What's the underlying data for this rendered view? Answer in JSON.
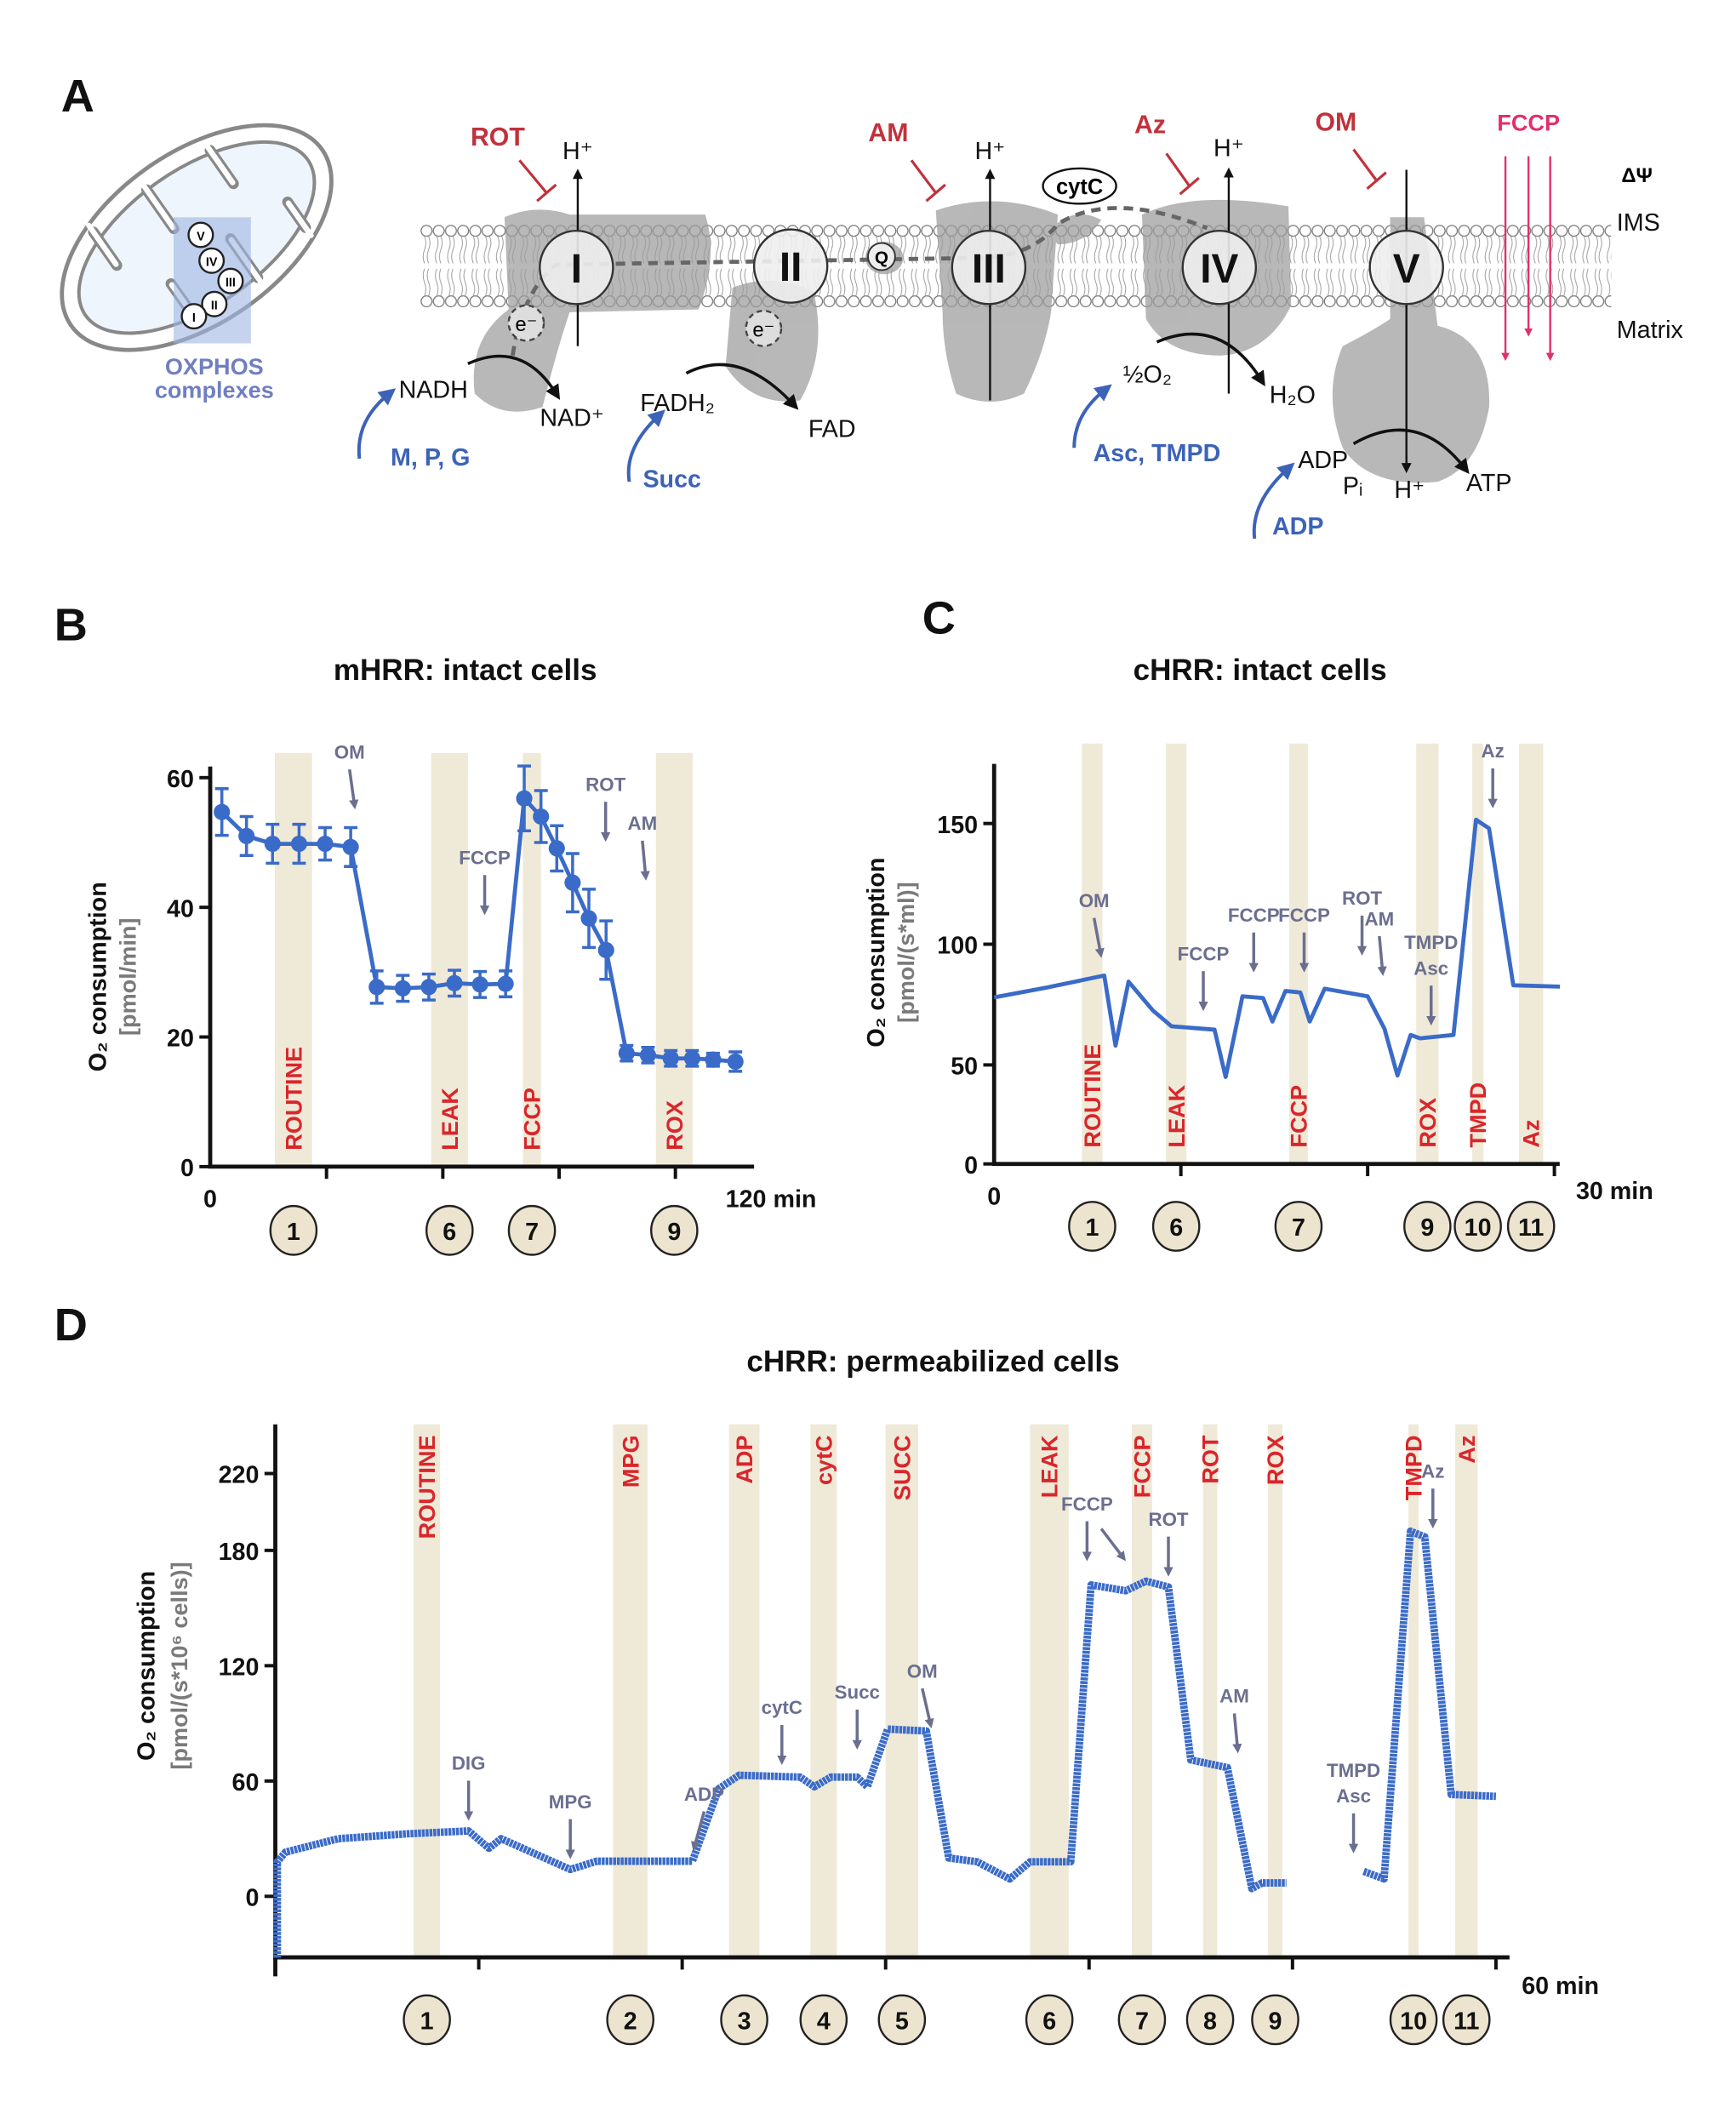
{
  "panel_labels": {
    "a": "A",
    "b": "B",
    "c": "C",
    "d": "D"
  },
  "diagram": {
    "mito_complexes": [
      "V",
      "IV",
      "III",
      "II",
      "I"
    ],
    "oxphos_label_1": "OXPHOS",
    "oxphos_label_2": "complexes",
    "complexes": [
      "I",
      "II",
      "III",
      "IV",
      "V"
    ],
    "q_label": "Q",
    "cytc_label": "cytC",
    "electron": "e⁻",
    "proton": "H⁺",
    "inhibitors": {
      "rot": "ROT",
      "am": "AM",
      "az": "Az",
      "om": "OM"
    },
    "uncoupler": "FCCP",
    "delta_psi": "ΔΨ",
    "ims": "IMS",
    "matrix": "Matrix",
    "metabolites": {
      "nadh": "NADH",
      "nad": "NAD⁺",
      "fadh2": "FADH₂",
      "fad": "FAD",
      "half_o2": "½O₂",
      "h2o": "H₂O",
      "adp": "ADP",
      "pi": "Pᵢ",
      "h": "H⁺",
      "atp": "ATP"
    },
    "substrates": {
      "mpg": "M, P, G",
      "succ": "Succ",
      "asc_tmpd": "Asc, TMPD",
      "adp": "ADP"
    }
  },
  "colors": {
    "trace": "#3a6bc8",
    "band": "#efe9d8",
    "band_label": "#d9262b",
    "annotation": "#6b6f8f",
    "inhibitor": "#c0323c",
    "fccp": "#e0306a"
  },
  "chart_data": [
    {
      "id": "B",
      "type": "line",
      "title": "mHRR: intact cells",
      "ylabel": "O₂ consumption",
      "yunit": "[pmol/min]",
      "x_start_label": "0",
      "x_end_label": "120 min",
      "xlim": [
        0,
        117
      ],
      "ylim": [
        0,
        60
      ],
      "yticks": [
        0,
        20,
        40,
        60
      ],
      "xticks": [
        25,
        50,
        75,
        100
      ],
      "series": [
        {
          "name": "O2 consumption",
          "x": [
            2.5,
            7.8,
            13.4,
            19.1,
            24.7,
            30.2,
            35.8,
            41.4,
            47,
            52.5,
            58,
            63.5,
            67.5,
            71.1,
            74.5,
            77.9,
            81.4,
            85.1,
            89.5,
            94.1,
            99,
            103.6,
            108.1,
            112.9
          ],
          "y": [
            54.7,
            51.0,
            49.8,
            49.8,
            49.8,
            49.3,
            27.7,
            27.5,
            27.7,
            28.3,
            28.1,
            28.2,
            56.8,
            54.0,
            49.1,
            43.8,
            38.3,
            33.4,
            17.5,
            17.2,
            16.7,
            16.7,
            16.5,
            16.2
          ],
          "err": [
            3.6,
            3.0,
            3.0,
            3.0,
            2.5,
            3.0,
            2.5,
            2.0,
            2.0,
            2.0,
            2.0,
            2.0,
            5.0,
            4.0,
            3.5,
            4.5,
            4.5,
            4.5,
            1.2,
            1.2,
            1.2,
            1.2,
            1.0,
            1.5
          ]
        }
      ],
      "bands": [
        {
          "label": "ROUTINE",
          "marker": "1",
          "x": [
            13.9,
            21.9
          ]
        },
        {
          "label": "LEAK",
          "marker": "6",
          "x": [
            47.5,
            55.4
          ]
        },
        {
          "label": "FCCP",
          "marker": "7",
          "x": [
            67.2,
            71.1
          ]
        },
        {
          "label": "ROX",
          "marker": "9",
          "x": [
            95.8,
            103.7
          ]
        }
      ],
      "annotations": [
        {
          "text": [
            "OM"
          ],
          "x": 31,
          "y": 55,
          "slant": 3
        },
        {
          "text": [
            "FCCP"
          ],
          "x": 59,
          "y": 38.7,
          "slant": 0
        },
        {
          "text": [
            "ROT"
          ],
          "x": 85,
          "y": 50,
          "slant": 0
        },
        {
          "text": [
            "AM"
          ],
          "x": 93.6,
          "y": 44,
          "slant": 2
        }
      ]
    },
    {
      "id": "C",
      "type": "line",
      "title": "cHRR: intact cells",
      "ylabel": "O₂ consumption",
      "yunit": "[pmol/(s*ml)]",
      "x_start_label": "0",
      "x_end_label": "30 min",
      "xlim": [
        0,
        30.3
      ],
      "ylim": [
        9,
        170
      ],
      "yticks": [
        0,
        50,
        100,
        150
      ],
      "xticks": [
        10,
        20,
        30
      ],
      "series": [
        {
          "name": "O2 consumption",
          "x": [
            0,
            2.8,
            5.9,
            6.5,
            7.2,
            8.5,
            9.5,
            11.8,
            12.4,
            13.3,
            14.4,
            14.9,
            15.6,
            16.4,
            16.9,
            17.7,
            20.0,
            20.9,
            21.6,
            22.3,
            22.8,
            24.6,
            25.8,
            26.5,
            27.8,
            30.3
          ],
          "y": [
            78,
            82,
            87,
            58,
            84.5,
            72.6,
            66,
            64.6,
            45,
            78.4,
            77.7,
            68,
            80.6,
            80,
            68,
            81.6,
            78.4,
            65,
            45.6,
            62.4,
            61,
            62.4,
            151.6,
            148,
            83,
            82.4
          ]
        }
      ],
      "bands": [
        {
          "label": "ROUTINE",
          "marker": "1",
          "x": [
            4.7,
            5.8
          ]
        },
        {
          "label": "LEAK",
          "marker": "6",
          "x": [
            9.2,
            10.3
          ]
        },
        {
          "label": "FCCP",
          "marker": "7",
          "x": [
            15.8,
            16.8
          ]
        },
        {
          "label": "ROX",
          "marker": "9",
          "x": [
            22.6,
            23.8
          ]
        },
        {
          "label": "TMPD",
          "marker": "10",
          "x": [
            25.6,
            26.2
          ]
        },
        {
          "label": "Az",
          "marker": "11",
          "x": [
            28.1,
            29.4
          ]
        }
      ],
      "annotations": [
        {
          "text": [
            "OM"
          ],
          "x": 5.7,
          "y": 94,
          "slant": 4
        },
        {
          "text": [
            "FCCP"
          ],
          "x": 11.2,
          "y": 72,
          "slant": 0
        },
        {
          "text": [
            "FCCP"
          ],
          "x": 13.9,
          "y": 88,
          "slant": 0
        },
        {
          "text": [
            "FCCP"
          ],
          "x": 16.6,
          "y": 88,
          "slant": 0
        },
        {
          "text": [
            "ROT"
          ],
          "x": 19.7,
          "y": 95,
          "slant": 0
        },
        {
          "text": [
            "AM"
          ],
          "x": 20.8,
          "y": 86.5,
          "slant": 2
        },
        {
          "text": [
            "TMPD",
            "Asc"
          ],
          "x": 23.4,
          "y": 66,
          "slant": 0
        },
        {
          "text": [
            "Az"
          ],
          "x": 26.7,
          "y": 156,
          "slant": 0
        }
      ]
    },
    {
      "id": "D",
      "type": "line",
      "title": "cHRR: permeabilized cells",
      "ylabel": "O₂ consumption",
      "yunit": "[pmol/(s*10⁶ cells)]",
      "x_end_label": "60 min",
      "xlim": [
        0,
        60.7
      ],
      "ylim": [
        -32,
        230
      ],
      "yticks": [
        0,
        60,
        120,
        180,
        220
      ],
      "xticks": [
        10,
        20,
        30,
        40,
        50,
        60
      ],
      "series": [
        {
          "name": "O2 consumption (part 1)",
          "x": [
            0.1,
            0.1,
            0.5,
            3.1,
            6.5,
            9.5,
            10.5,
            11.1,
            14.5,
            15.8,
            20.5,
            21.8,
            22.8,
            25.8,
            26.5,
            27.3,
            28.6,
            29.1,
            30.1,
            32.0,
            33.1,
            34.5,
            36.1,
            37.1,
            39.1,
            40.1,
            41.8,
            42.8,
            43.9,
            45.0,
            46.8,
            48.0,
            48.5,
            49.7
          ],
          "y": [
            -32,
            18,
            23,
            30,
            32.5,
            34,
            25,
            30,
            14,
            18.3,
            18.3,
            56,
            63,
            62,
            57,
            62,
            62,
            57,
            87,
            86,
            20,
            18,
            9,
            18,
            18,
            162,
            159,
            164,
            161,
            71,
            67,
            4,
            7,
            7
          ]
        },
        {
          "name": "O2 consumption (part 2)",
          "x": [
            53.5,
            54.5,
            55.8,
            56.5,
            57.8,
            60.0
          ],
          "y": [
            13,
            9,
            190,
            187,
            53,
            52
          ]
        }
      ],
      "bands": [
        {
          "label": "ROUTINE",
          "marker": "1",
          "x": [
            6.8,
            8.1
          ]
        },
        {
          "label": "MPG",
          "marker": "2",
          "x": [
            16.6,
            18.3
          ]
        },
        {
          "label": "ADP",
          "marker": "3",
          "x": [
            22.3,
            23.8
          ]
        },
        {
          "label": "cytC",
          "marker": "4",
          "x": [
            26.3,
            27.6
          ]
        },
        {
          "label": "SUCC",
          "marker": "5",
          "x": [
            30.0,
            31.6
          ]
        },
        {
          "label": "LEAK",
          "marker": "6",
          "x": [
            37.1,
            39.0
          ]
        },
        {
          "label": "FCCP",
          "marker": "7",
          "x": [
            42.1,
            43.1
          ]
        },
        {
          "label": "ROT",
          "marker": "8",
          "x": [
            45.6,
            46.3
          ]
        },
        {
          "label": "ROX",
          "marker": "9",
          "x": [
            48.8,
            49.5
          ]
        },
        {
          "label": "TMPD",
          "marker": "10",
          "x": [
            55.7,
            56.2
          ]
        },
        {
          "label": "Az",
          "marker": "11",
          "x": [
            58.0,
            59.1
          ]
        }
      ],
      "annotations": [
        {
          "text": [
            "DIG"
          ],
          "x": 9.5,
          "y": 39,
          "slant": 0
        },
        {
          "text": [
            "MPG"
          ],
          "x": 14.5,
          "y": 19,
          "slant": 0
        },
        {
          "text": [
            "ADP"
          ],
          "x": 20.6,
          "y": 23,
          "slant": -6
        },
        {
          "text": [
            "cytC"
          ],
          "x": 24.9,
          "y": 68,
          "slant": 0
        },
        {
          "text": [
            "Succ"
          ],
          "x": 28.6,
          "y": 76,
          "slant": 0
        },
        {
          "text": [
            "OM"
          ],
          "x": 32.2,
          "y": 87,
          "slant": 5
        },
        {
          "text": [
            "FCCP"
          ],
          "x": 39.9,
          "y": 174,
          "slant": 0
        },
        {
          "text": [
            "ROT"
          ],
          "x": 43.9,
          "y": 166,
          "slant": 0
        },
        {
          "text": [
            "AM"
          ],
          "x": 47.3,
          "y": 74,
          "slant": 2
        },
        {
          "text": [
            "TMPD",
            "Asc"
          ],
          "x": 53.0,
          "y": 22,
          "slant": 0
        },
        {
          "text": [
            "Az"
          ],
          "x": 56.9,
          "y": 191,
          "slant": 0
        }
      ]
    }
  ]
}
